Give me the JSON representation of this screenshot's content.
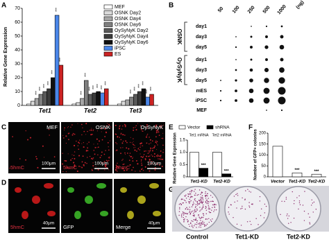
{
  "chart_data": [
    {
      "type": "bar",
      "label": "A",
      "y_label": "Relative Gene Expression",
      "categories": [
        "Tet1",
        "Tet2",
        "Tet3"
      ],
      "series": [
        {
          "name": "MEF",
          "color": "#ffffff",
          "values": [
            1,
            1,
            1
          ],
          "significance": [
            null,
            null,
            null
          ]
        },
        {
          "name": "OSNK Day2",
          "color": "#d9d9d9",
          "values": [
            3,
            2,
            3
          ],
          "significance": [
            null,
            null,
            null
          ]
        },
        {
          "name": "OSNK Day4",
          "color": "#a6a6a6",
          "values": [
            5,
            5,
            4
          ],
          "significance": [
            "***",
            "***",
            null
          ]
        },
        {
          "name": "OSNK Day6",
          "color": "#7f7f7f",
          "values": [
            8,
            18,
            6
          ],
          "significance": [
            "***",
            "***",
            "***"
          ]
        },
        {
          "name": "OySyNyK Day2",
          "color": "#595959",
          "values": [
            10,
            8,
            8
          ],
          "significance": [
            "***",
            "***",
            "***"
          ]
        },
        {
          "name": "OySyNyK Day4",
          "color": "#3a3a3a",
          "values": [
            12,
            9,
            10
          ],
          "significance": [
            "***",
            "***",
            "***"
          ]
        },
        {
          "name": "OySyNyK Day6",
          "color": "#111111",
          "values": [
            20,
            10,
            12
          ],
          "significance": [
            "***",
            "***",
            "***"
          ]
        },
        {
          "name": "iPSC",
          "color": "#4a86e8",
          "values": [
            65,
            9,
            6
          ],
          "significance": [
            "***",
            "***",
            "***"
          ]
        },
        {
          "name": "ES",
          "color": "#cc2222",
          "values": [
            29,
            12,
            8
          ],
          "significance": [
            "***",
            "***",
            "***"
          ]
        }
      ],
      "ylim": [
        0,
        70
      ],
      "yticks": [
        0,
        10,
        20,
        30,
        40,
        50,
        60,
        70
      ]
    },
    {
      "type": "bar",
      "label": "E",
      "y_label": "Relative Gene Expression",
      "categories": [
        "Tet1-KD",
        "Tet2-KD"
      ],
      "group_titles": [
        "Tet1 mRNA",
        "Tet2 mRNA"
      ],
      "series": [
        {
          "name": "Vector",
          "color": "#ffffff",
          "values": [
            1.0,
            1.0
          ],
          "significance": [
            null,
            null
          ]
        },
        {
          "name": "shRNA",
          "color": "#000000",
          "values": [
            0.35,
            0.12
          ],
          "significance": [
            "***",
            "***"
          ]
        }
      ],
      "ylim": [
        0,
        1.5
      ],
      "yticks": [
        0,
        {
          "value": 0.5,
          "label": "0.5"
        },
        {
          "value": 1,
          "label": "1.0"
        },
        {
          "value": 1.5,
          "label": "1.5"
        }
      ]
    },
    {
      "type": "bar",
      "label": "F",
      "y_label": "Number of GFP+ colonies",
      "categories": [
        "Vector",
        "Tet1-KD",
        "Tet2-KD"
      ],
      "series": [
        {
          "color": "#ffffff",
          "values": [
            140,
            18,
            12
          ],
          "significance": [
            null,
            "***",
            "***"
          ]
        }
      ],
      "ylim": [
        0,
        200
      ],
      "yticks": [
        0,
        50,
        100,
        150,
        200
      ]
    }
  ],
  "dot_blot": {
    "label": "B",
    "amounts": [
      "50",
      "100",
      "250",
      "500",
      "1000"
    ],
    "unit": "(ng)",
    "groups": [
      {
        "name": "OSNK",
        "rows": [
          "day1",
          "day3",
          "day5"
        ]
      },
      {
        "name": "OySyNyK",
        "rows": [
          "day1",
          "day3",
          "day5"
        ]
      }
    ],
    "controls": [
      "mES",
      "iPSC",
      "MEF"
    ]
  },
  "immunostaining": {
    "label": "C",
    "titles": [
      "MEF",
      "OSNK",
      "OySyNyK"
    ],
    "stain": "5hmC",
    "scale": "100μm"
  },
  "colocalization": {
    "label": "D",
    "channels": [
      "5hmC",
      "GFP",
      "Merge"
    ],
    "scale": "40μm"
  },
  "plates": {
    "label": "G",
    "titles": [
      "Control",
      "Tet1-KD",
      "Tet2-KD"
    ]
  }
}
